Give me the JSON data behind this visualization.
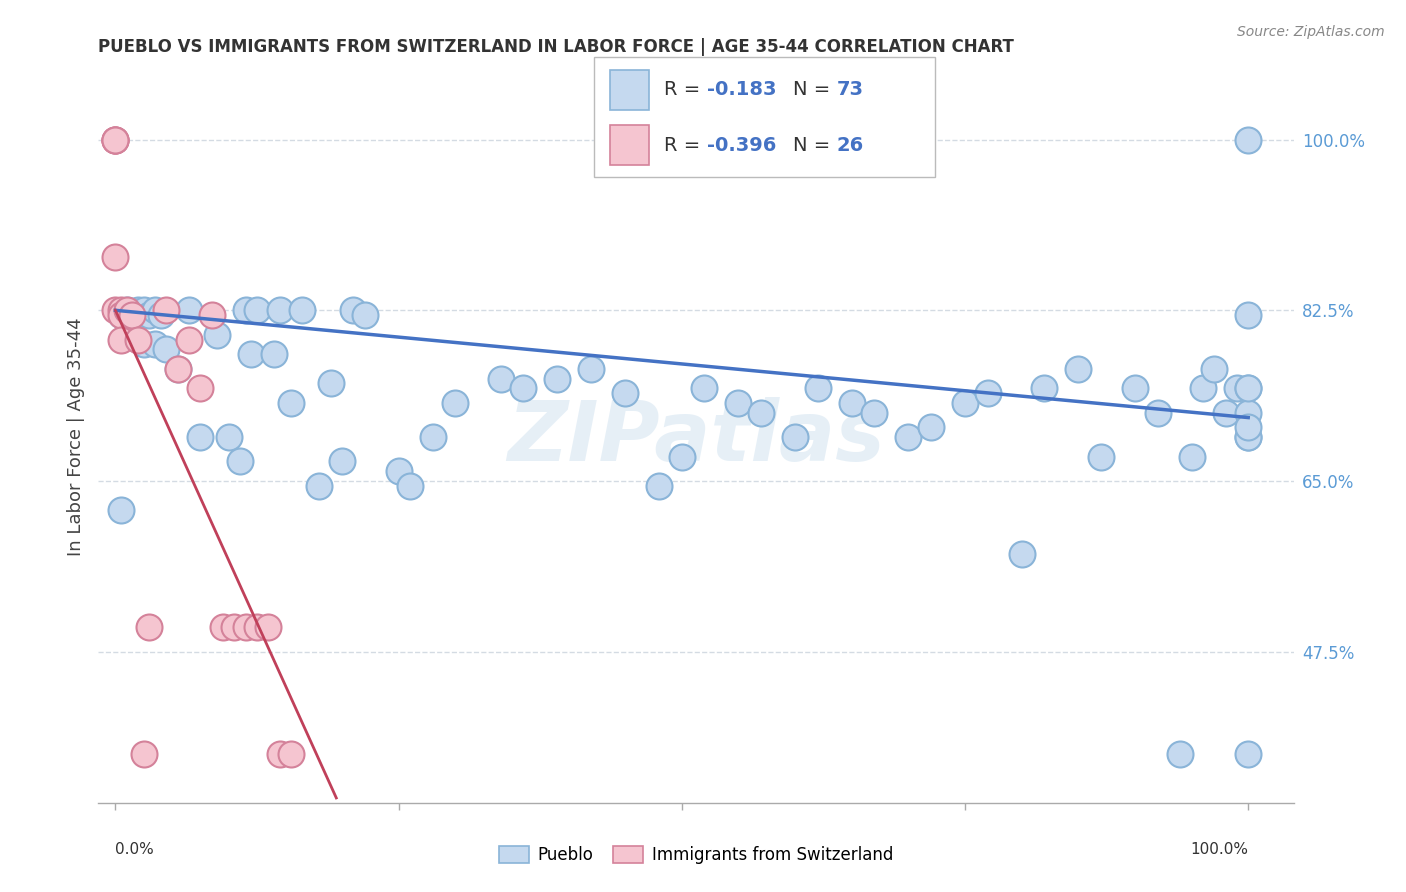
{
  "title": "PUEBLO VS IMMIGRANTS FROM SWITZERLAND IN LABOR FORCE | AGE 35-44 CORRELATION CHART",
  "source_text": "Source: ZipAtlas.com",
  "ylabel": "In Labor Force | Age 35-44",
  "background_color": "#ffffff",
  "grid_color": "#d0d8e0",
  "pueblo_color": "#c5d9ef",
  "pueblo_edge_color": "#8ab4d8",
  "swiss_color": "#f5c5d0",
  "swiss_edge_color": "#d4829a",
  "blue_line_color": "#4472c4",
  "pink_line_color": "#c0405a",
  "right_tick_color": "#5b9bd5",
  "legend_r1": "-0.183",
  "legend_n1": "73",
  "legend_r2": "-0.396",
  "legend_n2": "26",
  "right_yticks": [
    0.475,
    0.65,
    0.825,
    1.0
  ],
  "right_ytick_labels": [
    "47.5%",
    "65.0%",
    "82.5%",
    "100.0%"
  ],
  "xmin": -0.015,
  "xmax": 1.04,
  "ymin": 0.32,
  "ymax": 1.07,
  "pueblo_x": [
    0.005,
    0.005,
    0.01,
    0.015,
    0.02,
    0.025,
    0.025,
    0.03,
    0.035,
    0.035,
    0.04,
    0.045,
    0.055,
    0.065,
    0.075,
    0.09,
    0.1,
    0.11,
    0.115,
    0.12,
    0.125,
    0.14,
    0.145,
    0.155,
    0.165,
    0.18,
    0.19,
    0.2,
    0.21,
    0.22,
    0.25,
    0.26,
    0.28,
    0.3,
    0.34,
    0.36,
    0.39,
    0.42,
    0.45,
    0.48,
    0.5,
    0.52,
    0.55,
    0.57,
    0.6,
    0.62,
    0.65,
    0.67,
    0.7,
    0.72,
    0.75,
    0.77,
    0.8,
    0.82,
    0.85,
    0.87,
    0.9,
    0.92,
    0.94,
    0.95,
    0.96,
    0.97,
    0.98,
    0.99,
    1.0,
    1.0,
    1.0,
    1.0,
    1.0,
    1.0,
    1.0,
    1.0,
    1.0
  ],
  "pueblo_y": [
    0.82,
    0.62,
    0.825,
    0.82,
    0.825,
    0.79,
    0.825,
    0.82,
    0.825,
    0.79,
    0.82,
    0.785,
    0.765,
    0.825,
    0.695,
    0.8,
    0.695,
    0.67,
    0.825,
    0.78,
    0.825,
    0.78,
    0.825,
    0.73,
    0.825,
    0.645,
    0.75,
    0.67,
    0.825,
    0.82,
    0.66,
    0.645,
    0.695,
    0.73,
    0.755,
    0.745,
    0.755,
    0.765,
    0.74,
    0.645,
    0.675,
    0.745,
    0.73,
    0.72,
    0.695,
    0.745,
    0.73,
    0.72,
    0.695,
    0.705,
    0.73,
    0.74,
    0.575,
    0.745,
    0.765,
    0.675,
    0.745,
    0.72,
    0.37,
    0.675,
    0.745,
    0.765,
    0.72,
    0.745,
    0.695,
    0.745,
    0.72,
    0.695,
    0.37,
    0.705,
    0.745,
    0.82,
    1.0
  ],
  "swiss_x": [
    0.0,
    0.0,
    0.0,
    0.0,
    0.0,
    0.0,
    0.005,
    0.005,
    0.005,
    0.01,
    0.015,
    0.02,
    0.025,
    0.03,
    0.045,
    0.055,
    0.065,
    0.075,
    0.085,
    0.095,
    0.105,
    0.115,
    0.125,
    0.135,
    0.145,
    0.155
  ],
  "swiss_y": [
    1.0,
    1.0,
    1.0,
    1.0,
    0.88,
    0.825,
    0.825,
    0.82,
    0.795,
    0.825,
    0.82,
    0.795,
    0.37,
    0.5,
    0.825,
    0.765,
    0.795,
    0.745,
    0.82,
    0.5,
    0.5,
    0.5,
    0.5,
    0.5,
    0.37,
    0.37
  ],
  "blue_trend_x": [
    0.0,
    1.0
  ],
  "blue_trend_y": [
    0.825,
    0.715
  ],
  "pink_trend_x": [
    0.0,
    0.195
  ],
  "pink_trend_y": [
    0.825,
    0.325
  ],
  "watermark": "ZIPatlas"
}
